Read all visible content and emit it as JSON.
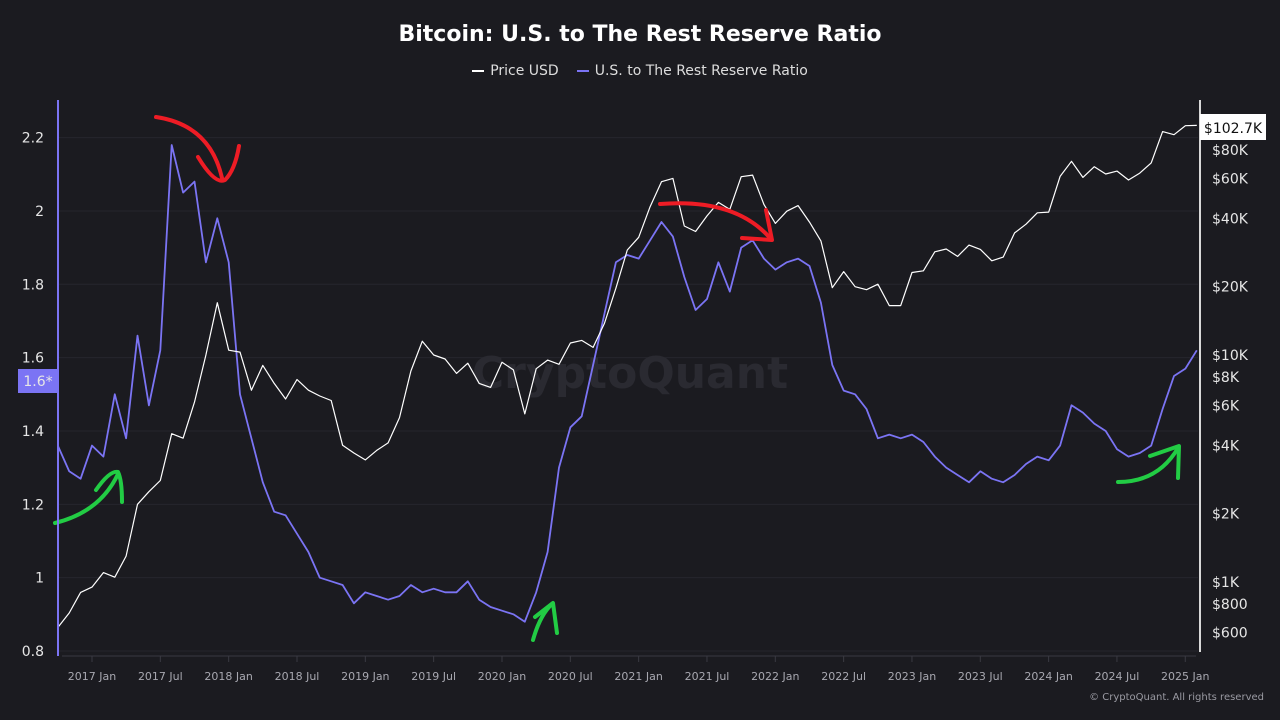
{
  "chart_data": {
    "type": "line",
    "title": "Bitcoin: U.S. to The Rest Reserve Ratio",
    "legend": [
      "Price USD",
      "U.S. to The Rest Reserve Ratio"
    ],
    "legend_placement": "top",
    "watermark": "CryptoQuant",
    "credit": "© CryptoQuant. All rights reserved",
    "colors": {
      "price": "#ffffff",
      "ratio": "#7b74f4",
      "background": "#1b1b20",
      "annotation_down": "#ee1c25",
      "annotation_up": "#22cc44"
    },
    "grid": true,
    "left_axis": {
      "ticks": [
        "0.8",
        "1",
        "1.2",
        "1.4",
        "1.6",
        "1.8",
        "2",
        "2.2"
      ],
      "range": [
        0.8,
        2.3
      ],
      "current_label": "1.6*"
    },
    "right_axis": {
      "scale": "log",
      "ticks": [
        {
          "v": 600,
          "l": "$600"
        },
        {
          "v": 800,
          "l": "$800"
        },
        {
          "v": 1000,
          "l": "$1K"
        },
        {
          "v": 2000,
          "l": "$2K"
        },
        {
          "v": 4000,
          "l": "$4K"
        },
        {
          "v": 6000,
          "l": "$6K"
        },
        {
          "v": 8000,
          "l": "$8K"
        },
        {
          "v": 10000,
          "l": "$10K"
        },
        {
          "v": 20000,
          "l": "$20K"
        },
        {
          "v": 40000,
          "l": "$40K"
        },
        {
          "v": 60000,
          "l": "$60K"
        },
        {
          "v": 80000,
          "l": "$80K"
        }
      ],
      "current_label": "$102.7K"
    },
    "x_ticks": [
      "2017 Jan",
      "2017 Jul",
      "2018 Jan",
      "2018 Jul",
      "2019 Jan",
      "2019 Jul",
      "2020 Jan",
      "2020 Jul",
      "2021 Jan",
      "2021 Jul",
      "2022 Jan",
      "2022 Jul",
      "2023 Jan",
      "2023 Jul",
      "2024 Jan",
      "2024 Jul",
      "2025 Jan"
    ],
    "x": [
      "2016-10",
      "2016-11",
      "2016-12",
      "2017-01",
      "2017-02",
      "2017-03",
      "2017-04",
      "2017-05",
      "2017-06",
      "2017-07",
      "2017-08",
      "2017-09",
      "2017-10",
      "2017-11",
      "2017-12",
      "2018-01",
      "2018-02",
      "2018-03",
      "2018-04",
      "2018-05",
      "2018-06",
      "2018-07",
      "2018-08",
      "2018-09",
      "2018-10",
      "2018-11",
      "2018-12",
      "2019-01",
      "2019-02",
      "2019-03",
      "2019-04",
      "2019-05",
      "2019-06",
      "2019-07",
      "2019-08",
      "2019-09",
      "2019-10",
      "2019-11",
      "2019-12",
      "2020-01",
      "2020-02",
      "2020-03",
      "2020-04",
      "2020-05",
      "2020-06",
      "2020-07",
      "2020-08",
      "2020-09",
      "2020-10",
      "2020-11",
      "2020-12",
      "2021-01",
      "2021-02",
      "2021-03",
      "2021-04",
      "2021-05",
      "2021-06",
      "2021-07",
      "2021-08",
      "2021-09",
      "2021-10",
      "2021-11",
      "2021-12",
      "2022-01",
      "2022-02",
      "2022-03",
      "2022-04",
      "2022-05",
      "2022-06",
      "2022-07",
      "2022-08",
      "2022-09",
      "2022-10",
      "2022-11",
      "2022-12",
      "2023-01",
      "2023-02",
      "2023-03",
      "2023-04",
      "2023-05",
      "2023-06",
      "2023-07",
      "2023-08",
      "2023-09",
      "2023-10",
      "2023-11",
      "2023-12",
      "2024-01",
      "2024-02",
      "2024-03",
      "2024-04",
      "2024-05",
      "2024-06",
      "2024-07",
      "2024-08",
      "2024-09",
      "2024-10",
      "2024-11",
      "2024-12",
      "2025-01",
      "2025-02"
    ],
    "series": [
      {
        "name": "U.S. to The Rest Reserve Ratio",
        "axis": "left",
        "values": [
          1.36,
          1.29,
          1.27,
          1.36,
          1.33,
          1.5,
          1.38,
          1.66,
          1.47,
          1.62,
          2.18,
          2.05,
          2.08,
          1.86,
          1.98,
          1.86,
          1.5,
          1.38,
          1.26,
          1.18,
          1.17,
          1.12,
          1.07,
          1.0,
          0.99,
          0.98,
          0.93,
          0.96,
          0.95,
          0.94,
          0.95,
          0.98,
          0.96,
          0.97,
          0.96,
          0.96,
          0.99,
          0.94,
          0.92,
          0.91,
          0.9,
          0.88,
          0.96,
          1.07,
          1.3,
          1.41,
          1.44,
          1.58,
          1.72,
          1.86,
          1.88,
          1.87,
          1.92,
          1.97,
          1.93,
          1.82,
          1.73,
          1.76,
          1.86,
          1.78,
          1.9,
          1.92,
          1.87,
          1.84,
          1.86,
          1.87,
          1.85,
          1.75,
          1.58,
          1.51,
          1.5,
          1.46,
          1.38,
          1.39,
          1.38,
          1.39,
          1.37,
          1.33,
          1.3,
          1.28,
          1.26,
          1.29,
          1.27,
          1.26,
          1.28,
          1.31,
          1.33,
          1.32,
          1.36,
          1.47,
          1.45,
          1.42,
          1.4,
          1.35,
          1.33,
          1.34,
          1.36,
          1.46,
          1.55,
          1.57,
          1.62
        ]
      },
      {
        "name": "Price USD",
        "axis": "right",
        "values": [
          630,
          730,
          900,
          950,
          1100,
          1050,
          1300,
          2200,
          2500,
          2800,
          4500,
          4300,
          6200,
          10000,
          17000,
          10500,
          10300,
          7000,
          9000,
          7500,
          6400,
          7800,
          7000,
          6600,
          6300,
          4000,
          3700,
          3450,
          3800,
          4100,
          5300,
          8500,
          11500,
          10000,
          9600,
          8300,
          9200,
          7500,
          7200,
          9300,
          8600,
          5500,
          8700,
          9500,
          9100,
          11300,
          11600,
          10800,
          13800,
          19700,
          29000,
          33000,
          45000,
          58000,
          60000,
          37000,
          35000,
          41000,
          47000,
          43800,
          61000,
          62000,
          46000,
          38000,
          43000,
          45500,
          38500,
          31800,
          19800,
          23300,
          20000,
          19400,
          20500,
          16500,
          16500,
          23100,
          23500,
          28500,
          29300,
          27200,
          30500,
          29200,
          26000,
          27000,
          34500,
          37700,
          42300,
          42600,
          61200,
          71300,
          60600,
          67500,
          62700,
          64600,
          59000,
          63300,
          70200,
          96400,
          93400,
          102400,
          102700
        ]
      }
    ]
  }
}
